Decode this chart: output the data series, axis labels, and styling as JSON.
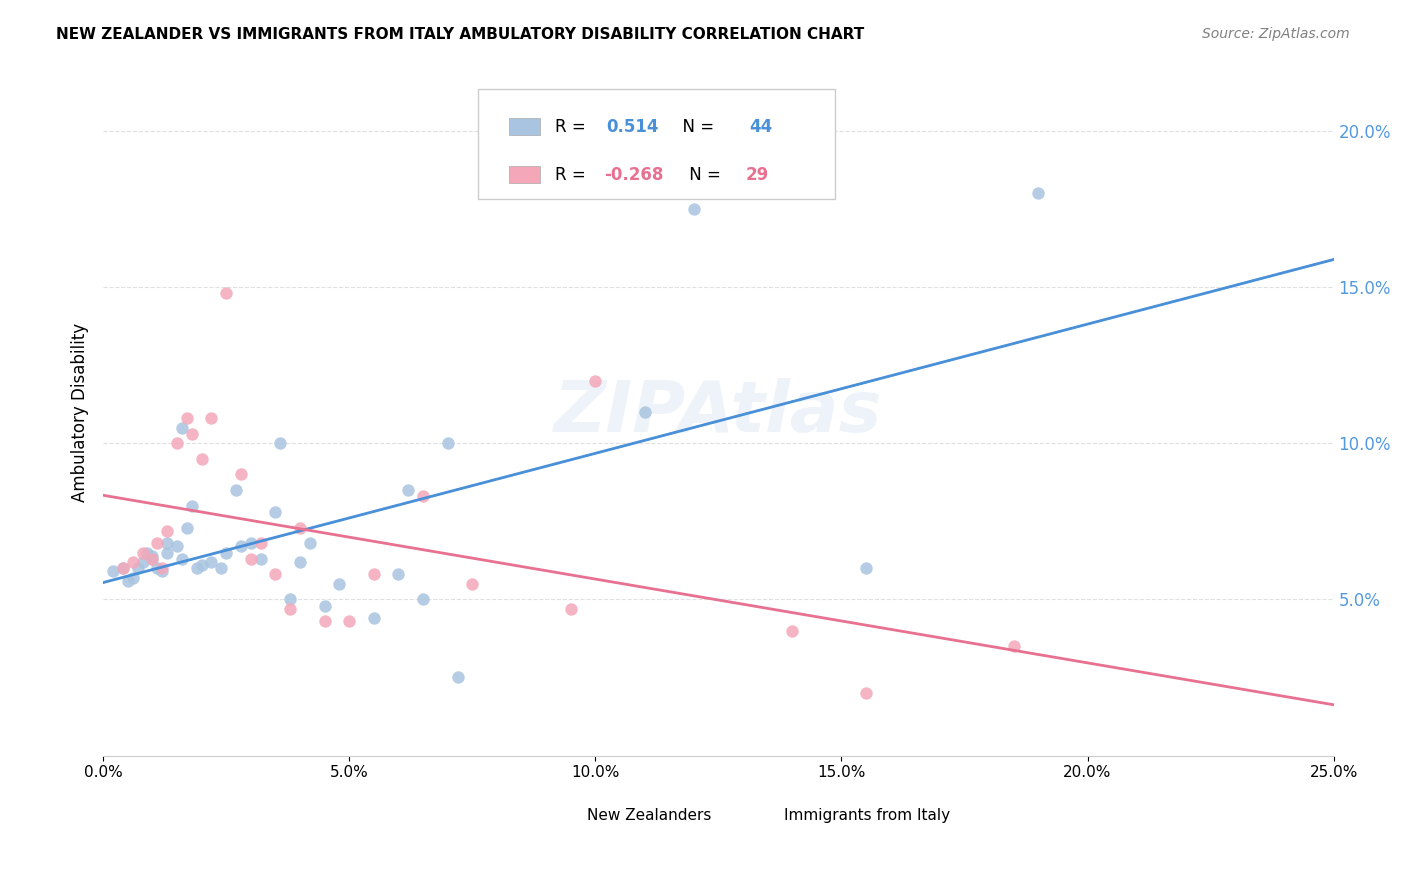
{
  "title": "NEW ZEALANDER VS IMMIGRANTS FROM ITALY AMBULATORY DISABILITY CORRELATION CHART",
  "source": "Source: ZipAtlas.com",
  "xlabel_bottom": "",
  "ylabel": "Ambulatory Disability",
  "xmin": 0.0,
  "xmax": 0.25,
  "ymin": 0.0,
  "ymax": 0.22,
  "x_ticks": [
    0.0,
    0.05,
    0.1,
    0.15,
    0.2,
    0.25
  ],
  "x_tick_labels": [
    "0.0%",
    "5.0%",
    "10.0%",
    "15.0%",
    "20.0%",
    "25.0%"
  ],
  "y_ticks_left": [
    0.05,
    0.1,
    0.15,
    0.2
  ],
  "y_tick_labels_left": [
    "5.0%",
    "10.0%",
    "15.0%",
    "20.0%"
  ],
  "legend_nz": "New Zealanders",
  "legend_italy": "Immigrants from Italy",
  "R_nz": 0.514,
  "N_nz": 44,
  "R_italy": -0.268,
  "N_italy": 29,
  "color_nz": "#a8c4e0",
  "color_italy": "#f4a7b9",
  "trendline_nz_color": "#4a90d9",
  "trendline_italy_color": "#e87090",
  "trendline_dashed_color": "#b0c8e0",
  "nz_x": [
    0.002,
    0.004,
    0.005,
    0.006,
    0.007,
    0.008,
    0.009,
    0.01,
    0.01,
    0.011,
    0.012,
    0.013,
    0.013,
    0.015,
    0.016,
    0.016,
    0.017,
    0.018,
    0.019,
    0.02,
    0.022,
    0.024,
    0.025,
    0.027,
    0.028,
    0.03,
    0.032,
    0.035,
    0.036,
    0.038,
    0.04,
    0.042,
    0.045,
    0.048,
    0.055,
    0.06,
    0.062,
    0.065,
    0.07,
    0.072,
    0.11,
    0.12,
    0.155,
    0.19
  ],
  "nz_y": [
    0.059,
    0.06,
    0.056,
    0.057,
    0.06,
    0.062,
    0.065,
    0.064,
    0.063,
    0.06,
    0.059,
    0.068,
    0.065,
    0.067,
    0.105,
    0.063,
    0.073,
    0.08,
    0.06,
    0.061,
    0.062,
    0.06,
    0.065,
    0.085,
    0.067,
    0.068,
    0.063,
    0.078,
    0.1,
    0.05,
    0.062,
    0.068,
    0.048,
    0.055,
    0.044,
    0.058,
    0.085,
    0.05,
    0.1,
    0.025,
    0.11,
    0.175,
    0.06,
    0.18
  ],
  "italy_x": [
    0.004,
    0.006,
    0.008,
    0.01,
    0.011,
    0.012,
    0.013,
    0.015,
    0.017,
    0.018,
    0.02,
    0.022,
    0.025,
    0.028,
    0.03,
    0.032,
    0.035,
    0.038,
    0.04,
    0.045,
    0.05,
    0.055,
    0.065,
    0.075,
    0.095,
    0.1,
    0.14,
    0.155,
    0.185
  ],
  "italy_y": [
    0.06,
    0.062,
    0.065,
    0.063,
    0.068,
    0.06,
    0.072,
    0.1,
    0.108,
    0.103,
    0.095,
    0.108,
    0.148,
    0.09,
    0.063,
    0.068,
    0.058,
    0.047,
    0.073,
    0.043,
    0.043,
    0.058,
    0.083,
    0.055,
    0.047,
    0.12,
    0.04,
    0.02,
    0.035
  ],
  "background_color": "#ffffff",
  "grid_color": "#e0e0e0"
}
